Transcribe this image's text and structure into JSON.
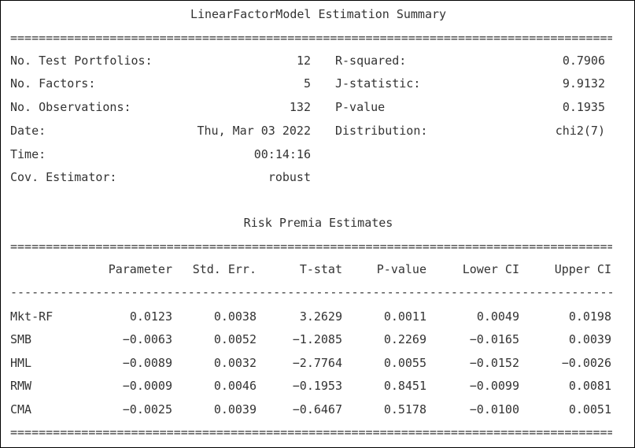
{
  "title": "LinearFactorModel Estimation Summary",
  "summary": {
    "rows": [
      {
        "k1": "No. Test Portfolios:",
        "v1": "12",
        "k2": "R-squared:",
        "v2": "0.7906"
      },
      {
        "k1": "No. Factors:",
        "v1": "5",
        "k2": "J-statistic:",
        "v2": "9.9132"
      },
      {
        "k1": "No. Observations:",
        "v1": "132",
        "k2": "P-value",
        "v2": "0.1935"
      },
      {
        "k1": "Date:",
        "v1": "Thu, Mar 03 2022",
        "k2": "Distribution:",
        "v2": "chi2(7)"
      },
      {
        "k1": "Time:",
        "v1": "00:14:16",
        "k2": "",
        "v2": ""
      },
      {
        "k1": "Cov. Estimator:",
        "v1": "robust",
        "k2": "",
        "v2": ""
      }
    ]
  },
  "risk_title": "Risk Premia Estimates",
  "table": {
    "headers": [
      "",
      "Parameter",
      "Std. Err.",
      "T-stat",
      "P-value",
      "Lower CI",
      "Upper CI"
    ],
    "rows": [
      [
        "Mkt-RF",
        "0.0123",
        "0.0038",
        "3.2629",
        "0.0011",
        "0.0049",
        "0.0198"
      ],
      [
        "SMB",
        "-0.0063",
        "0.0052",
        "-1.2085",
        "0.2269",
        "-0.0165",
        "0.0039"
      ],
      [
        "HML",
        "-0.0089",
        "0.0032",
        "-2.7764",
        "0.0055",
        "-0.0152",
        "-0.0026"
      ],
      [
        "RMW",
        "-0.0009",
        "0.0046",
        "-0.1953",
        "0.8451",
        "-0.0099",
        "0.0081"
      ],
      [
        "CMA",
        "-0.0025",
        "0.0039",
        "-0.6467",
        "0.5178",
        "-0.0100",
        "0.0051"
      ]
    ]
  }
}
